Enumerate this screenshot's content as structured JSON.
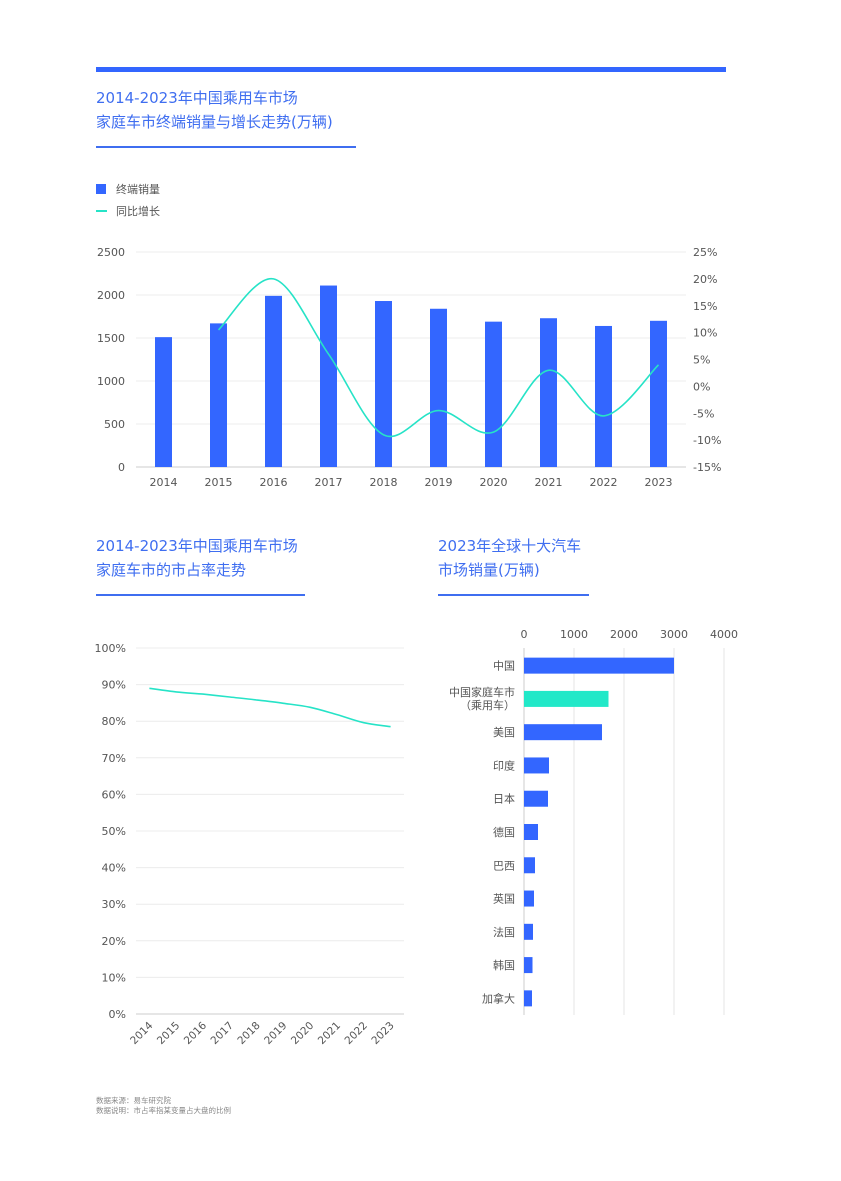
{
  "header": {
    "title1_line1": "2014-2023年中国乘用车市场",
    "title1_line2": "家庭车市终端销量与增长走势(万辆)",
    "title2_line1": "2014-2023年中国乘用车市场",
    "title2_line2": "家庭车市的市占率走势",
    "title3_line1": "2023年全球十大汽车",
    "title3_line2": "市场销量(万辆)"
  },
  "footer": {
    "source": "数据来源：易车研究院",
    "note": "数据说明：市占率指某变量占大盘的比例"
  },
  "colors": {
    "accent": "#3366ff",
    "line": "#26e3c7",
    "highlight_bar": "#22e8c8",
    "title": "#3f6ef0"
  },
  "chart_data": [
    {
      "type": "bar",
      "title": "2014-2023年中国乘用车市场 家庭车市终端销量与增长走势(万辆)",
      "categories": [
        "2014",
        "2015",
        "2016",
        "2017",
        "2018",
        "2019",
        "2020",
        "2021",
        "2022",
        "2023"
      ],
      "series": [
        {
          "name": "终端销量",
          "type": "bar",
          "axis": "left",
          "values": [
            1510,
            1670,
            1990,
            2110,
            1930,
            1840,
            1690,
            1730,
            1640,
            1700
          ]
        },
        {
          "name": "同比增长",
          "type": "line",
          "axis": "right",
          "values": [
            null,
            10.5,
            20,
            6,
            -9,
            -4.5,
            -8.5,
            3,
            -5.5,
            4
          ]
        }
      ],
      "ylim": [
        0,
        2500
      ],
      "y_ticks": [
        "0",
        "500",
        "1000",
        "1500",
        "2000",
        "2500"
      ],
      "y2lim": [
        -15,
        25
      ],
      "y2_ticks": [
        "-15%",
        "-10%",
        "-5%",
        "0%",
        "5%",
        "10%",
        "15%",
        "20%",
        "25%"
      ],
      "grid": true,
      "legend": "top-left"
    },
    {
      "type": "line",
      "title": "2014-2023年中国乘用车市场 家庭车市的市占率走势",
      "categories": [
        "2014",
        "2015",
        "2016",
        "2017",
        "2018",
        "2019",
        "2020",
        "2021",
        "2022",
        "2023"
      ],
      "series": [
        {
          "values": [
            89.0,
            88.0,
            87.4,
            86.6,
            85.8,
            84.9,
            83.8,
            81.8,
            79.6,
            78.5
          ]
        }
      ],
      "ylim": [
        0,
        100
      ],
      "y_ticks": [
        "0%",
        "10%",
        "20%",
        "30%",
        "40%",
        "50%",
        "60%",
        "70%",
        "80%",
        "90%",
        "100%"
      ],
      "grid": true
    },
    {
      "type": "bar",
      "orientation": "horizontal",
      "title": "2023年全球十大汽车 市场销量(万辆)",
      "categories": [
        "中国",
        "中国家庭车市\n（乘用车）",
        "美国",
        "印度",
        "日本",
        "德国",
        "巴西",
        "英国",
        "法国",
        "韩国",
        "加拿大"
      ],
      "values": [
        3000,
        1690,
        1560,
        500,
        480,
        280,
        220,
        200,
        180,
        170,
        160
      ],
      "highlight_index": 1,
      "xlim": [
        0,
        4000
      ],
      "x_ticks": [
        "0",
        "1000",
        "2000",
        "3000",
        "4000"
      ],
      "grid": true
    }
  ]
}
